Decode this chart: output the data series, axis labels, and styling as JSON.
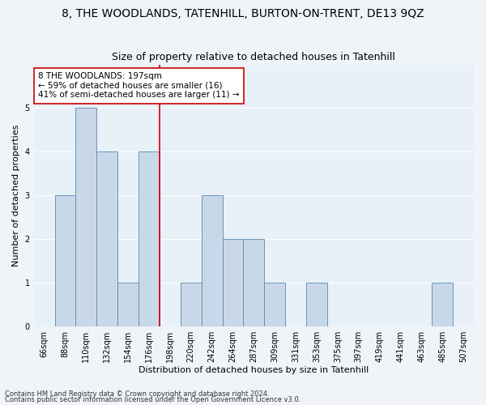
{
  "title": "8, THE WOODLANDS, TATENHILL, BURTON-ON-TRENT, DE13 9QZ",
  "subtitle": "Size of property relative to detached houses in Tatenhill",
  "xlabel": "Distribution of detached houses by size in Tatenhill",
  "ylabel": "Number of detached properties",
  "footnote1": "Contains HM Land Registry data © Crown copyright and database right 2024.",
  "footnote2": "Contains public sector information licensed under the Open Government Licence v3.0.",
  "bins": [
    "66sqm",
    "88sqm",
    "110sqm",
    "132sqm",
    "154sqm",
    "176sqm",
    "198sqm",
    "220sqm",
    "242sqm",
    "264sqm",
    "287sqm",
    "309sqm",
    "331sqm",
    "353sqm",
    "375sqm",
    "397sqm",
    "419sqm",
    "441sqm",
    "463sqm",
    "485sqm",
    "507sqm"
  ],
  "values": [
    0,
    3,
    5,
    4,
    1,
    4,
    0,
    1,
    3,
    2,
    2,
    1,
    0,
    1,
    0,
    0,
    0,
    0,
    0,
    1,
    0
  ],
  "bar_color": "#c8d8e8",
  "bar_edge_color": "#5a8ab0",
  "highlight_line_color": "#cc0000",
  "annotation_text": "8 THE WOODLANDS: 197sqm\n← 59% of detached houses are smaller (16)\n41% of semi-detached houses are larger (11) →",
  "annotation_box_color": "#ffffff",
  "annotation_box_edge": "#cc0000",
  "ylim": [
    0,
    6
  ],
  "yticks": [
    0,
    1,
    2,
    3,
    4,
    5,
    6
  ],
  "background_color": "#e8f0f8",
  "grid_color": "#ffffff",
  "title_fontsize": 10,
  "subtitle_fontsize": 9,
  "axis_label_fontsize": 8,
  "tick_fontsize": 7,
  "annotation_fontsize": 7.5,
  "footnote_fontsize": 6
}
